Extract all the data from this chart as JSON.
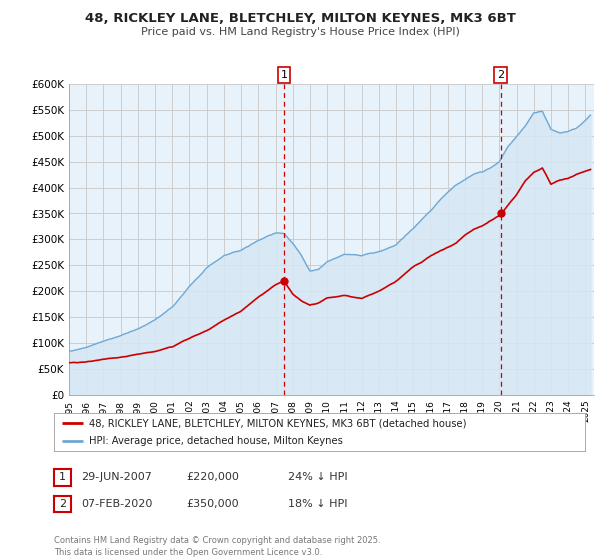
{
  "title": "48, RICKLEY LANE, BLETCHLEY, MILTON KEYNES, MK3 6BT",
  "subtitle": "Price paid vs. HM Land Registry's House Price Index (HPI)",
  "ylim": [
    0,
    600000
  ],
  "yticks": [
    0,
    50000,
    100000,
    150000,
    200000,
    250000,
    300000,
    350000,
    400000,
    450000,
    500000,
    550000,
    600000
  ],
  "xlim_start": 1995.0,
  "xlim_end": 2025.5,
  "background_color": "#ffffff",
  "grid_color": "#c8c8c8",
  "hpi_color": "#6fa8d4",
  "hpi_fill_color": "#d6e8f5",
  "price_color": "#cc0000",
  "marker1_x": 2007.49,
  "marker1_y": 220000,
  "marker2_x": 2020.08,
  "marker2_y": 350000,
  "legend1_label": "48, RICKLEY LANE, BLETCHLEY, MILTON KEYNES, MK3 6BT (detached house)",
  "legend2_label": "HPI: Average price, detached house, Milton Keynes",
  "annotation1_num": "1",
  "annotation1_date": "29-JUN-2007",
  "annotation1_price": "£220,000",
  "annotation1_hpi": "24% ↓ HPI",
  "annotation2_num": "2",
  "annotation2_date": "07-FEB-2020",
  "annotation2_price": "£350,000",
  "annotation2_hpi": "18% ↓ HPI",
  "footer": "Contains HM Land Registry data © Crown copyright and database right 2025.\nThis data is licensed under the Open Government Licence v3.0."
}
